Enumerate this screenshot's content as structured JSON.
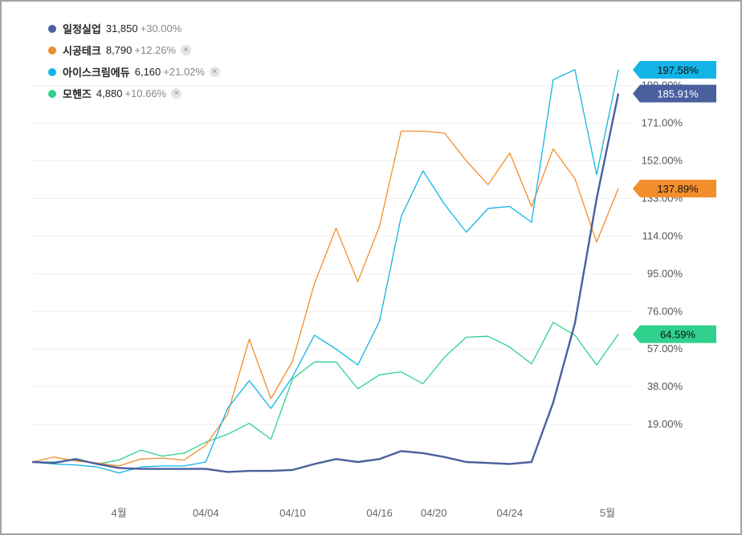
{
  "legend": [
    {
      "name": "일정실업",
      "value": "31,850",
      "change": "+30.00%",
      "closable": false
    },
    {
      "name": "시공테크",
      "value": "8,790",
      "change": "+12.26%",
      "closable": true
    },
    {
      "name": "아이스크림에듀",
      "value": "6,160",
      "change": "+21.02%",
      "closable": true
    },
    {
      "name": "모헨즈",
      "value": "4,880",
      "change": "+10.66%",
      "closable": true
    }
  ],
  "close_icon": "×",
  "chart_data": {
    "type": "line",
    "title": "",
    "xlabel": "",
    "ylabel": "",
    "ylim": [
      -5,
      200
    ],
    "y_ticks": [
      19,
      38,
      57,
      76,
      95,
      114,
      133,
      152,
      171,
      190
    ],
    "y_tick_labels": [
      "19.00%",
      "38.00%",
      "57.00%",
      "76.00%",
      "95.00%",
      "114.00%",
      "133.00%",
      "152.00%",
      "171.00%",
      "190.00%"
    ],
    "x_tick_labels": [
      {
        "index": 4,
        "label": "4월"
      },
      {
        "index": 8,
        "label": "04/04"
      },
      {
        "index": 12,
        "label": "04/10"
      },
      {
        "index": 16,
        "label": "04/16"
      },
      {
        "index": 18.5,
        "label": "04/20"
      },
      {
        "index": 22,
        "label": "04/24"
      },
      {
        "index": 26.5,
        "label": "5월"
      }
    ],
    "grid": true,
    "legend_position": "top-left",
    "series": [
      {
        "name": "일정실업",
        "color": "#4a5f9e",
        "end_label": "185.91%",
        "values": [
          0,
          -0.5,
          1.5,
          -1,
          -3,
          -3.5,
          -3.5,
          -3.5,
          -3.5,
          -5,
          -4.5,
          -4.5,
          -4,
          -1,
          1.5,
          0,
          1.5,
          5.5,
          4.5,
          2.5,
          0,
          -0.5,
          -1,
          0,
          30,
          70,
          133,
          186
        ]
      },
      {
        "name": "시공테크",
        "color": "#f28e2b",
        "end_label": "137.89%",
        "values": [
          0,
          2.5,
          0.5,
          -0.5,
          -2,
          1.5,
          2,
          1,
          8.5,
          24,
          62,
          32,
          51,
          90,
          118,
          91,
          119,
          167,
          167,
          166,
          152,
          140,
          156,
          129,
          158,
          143,
          111,
          138
        ]
      },
      {
        "name": "아이스크림에듀",
        "color": "#12b5e5",
        "end_label": "197.58%",
        "values": [
          0,
          -1,
          -1.5,
          -2.5,
          -5.5,
          -2.5,
          -2,
          -2,
          0,
          27,
          41,
          27,
          43,
          64,
          57,
          49,
          71,
          124,
          147,
          130,
          116,
          128,
          129,
          121,
          193,
          198,
          145,
          198
        ]
      },
      {
        "name": "모헨즈",
        "color": "#2fd18d",
        "end_label": "64.59%",
        "values": [
          0,
          0,
          1,
          -1,
          1,
          6,
          3,
          4.5,
          10,
          14,
          19.5,
          11.5,
          42,
          50.5,
          50.5,
          37,
          44,
          45.5,
          39.5,
          53,
          63,
          63.5,
          58,
          49.5,
          70.5,
          64,
          49,
          64.5
        ]
      }
    ]
  }
}
